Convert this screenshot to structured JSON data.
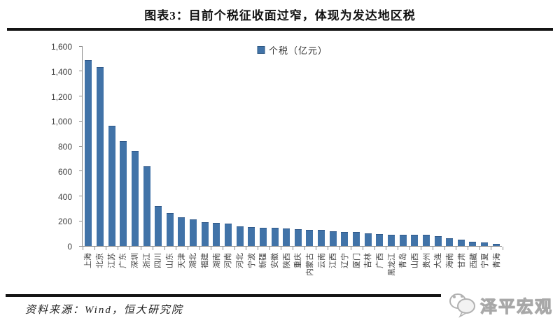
{
  "header": {
    "title": "图表3：目前个税征收面过窄，体现为发达地区税"
  },
  "footer": {
    "source": "资料来源：Wind，恒大研究院",
    "watermark": "泽平宏观"
  },
  "chart_data": {
    "type": "bar",
    "title": "图表3：目前个税征收面过窄，体现为发达地区税",
    "legend": [
      "个税（亿元）"
    ],
    "legend_position": "top-center",
    "grid": false,
    "bar_color": "#4173a8",
    "ylabel": "",
    "xlabel": "",
    "ylim": [
      0,
      1600
    ],
    "yticks": [
      0,
      200,
      400,
      600,
      800,
      1000,
      1200,
      1400,
      1600
    ],
    "ytick_labels": [
      "0",
      "200",
      "400",
      "600",
      "800",
      "1,000",
      "1,200",
      "1,400",
      "1,600"
    ],
    "categories": [
      "上海",
      "北京",
      "江苏",
      "广东",
      "深圳",
      "浙江",
      "四川",
      "山东",
      "天津",
      "湖北",
      "福建",
      "湖南",
      "河南",
      "河北",
      "宁波",
      "新疆",
      "安徽",
      "陕西",
      "重庆",
      "内蒙古",
      "云南",
      "江西",
      "辽宁",
      "厦门",
      "吉林",
      "广西",
      "黑龙江",
      "青岛",
      "山西",
      "贵州",
      "大连",
      "海南",
      "甘肃",
      "西藏",
      "宁夏",
      "青海"
    ],
    "values": [
      1490,
      1435,
      965,
      840,
      760,
      640,
      320,
      262,
      228,
      212,
      190,
      182,
      178,
      158,
      150,
      145,
      143,
      140,
      135,
      128,
      126,
      120,
      113,
      110,
      100,
      97,
      90,
      89,
      88,
      87,
      80,
      60,
      53,
      33,
      27,
      17
    ]
  }
}
